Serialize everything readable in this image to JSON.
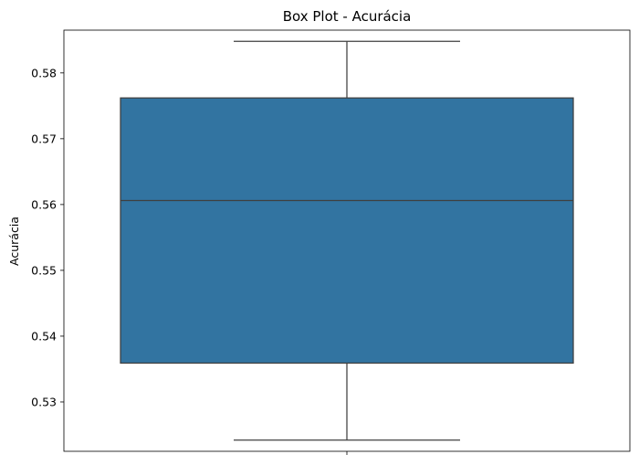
{
  "chart_data": {
    "type": "box",
    "title": "Box Plot - Acurácia",
    "xlabel": "",
    "ylabel": "Acurácia",
    "ylim": [
      0.5225,
      0.5865
    ],
    "yticks": [
      0.53,
      0.54,
      0.55,
      0.56,
      0.57,
      0.58
    ],
    "ytick_labels": [
      "0.53",
      "0.54",
      "0.55",
      "0.56",
      "0.57",
      "0.58"
    ],
    "grid": false,
    "box": {
      "whisker_low": 0.5242,
      "q1": 0.5359,
      "median": 0.5606,
      "q3": 0.5762,
      "whisker_high": 0.5848
    },
    "colors": {
      "box_fill": "#3274a1",
      "line": "#3f3f3f"
    }
  }
}
